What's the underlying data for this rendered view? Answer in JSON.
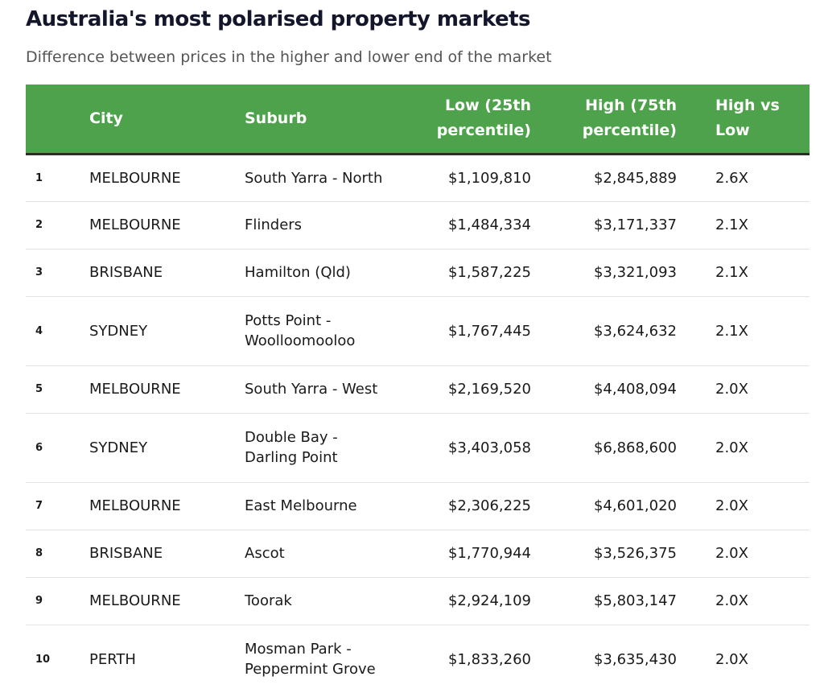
{
  "title": "Australia's most polarised property markets",
  "subtitle": "Difference between prices in the higher and lower end of the market",
  "header": {
    "rank": "",
    "city": "City",
    "suburb": "Suburb",
    "low_line1": "Low (25th",
    "low_line2": "percentile)",
    "high_line1": "High (75th",
    "high_line2": "percentile)",
    "ratio_line1": "High vs",
    "ratio_line2": "Low"
  },
  "rows": [
    {
      "rank": "1",
      "city": "MELBOURNE",
      "suburb_line1": "South Yarra - North",
      "suburb_line2": "",
      "low": "$1,109,810",
      "high": "$2,845,889",
      "ratio": "2.6X"
    },
    {
      "rank": "2",
      "city": "MELBOURNE",
      "suburb_line1": "Flinders",
      "suburb_line2": "",
      "low": "$1,484,334",
      "high": "$3,171,337",
      "ratio": "2.1X"
    },
    {
      "rank": "3",
      "city": "BRISBANE",
      "suburb_line1": "Hamilton (Qld)",
      "suburb_line2": "",
      "low": "$1,587,225",
      "high": "$3,321,093",
      "ratio": "2.1X"
    },
    {
      "rank": "4",
      "city": "SYDNEY",
      "suburb_line1": "Potts Point -",
      "suburb_line2": "Woolloomooloo",
      "low": "$1,767,445",
      "high": "$3,624,632",
      "ratio": "2.1X"
    },
    {
      "rank": "5",
      "city": "MELBOURNE",
      "suburb_line1": "South Yarra - West",
      "suburb_line2": "",
      "low": "$2,169,520",
      "high": "$4,408,094",
      "ratio": "2.0X"
    },
    {
      "rank": "6",
      "city": "SYDNEY",
      "suburb_line1": "Double Bay -",
      "suburb_line2": "Darling Point",
      "low": "$3,403,058",
      "high": "$6,868,600",
      "ratio": "2.0X"
    },
    {
      "rank": "7",
      "city": "MELBOURNE",
      "suburb_line1": "East Melbourne",
      "suburb_line2": "",
      "low": "$2,306,225",
      "high": "$4,601,020",
      "ratio": "2.0X"
    },
    {
      "rank": "8",
      "city": "BRISBANE",
      "suburb_line1": "Ascot",
      "suburb_line2": "",
      "low": "$1,770,944",
      "high": "$3,526,375",
      "ratio": "2.0X"
    },
    {
      "rank": "9",
      "city": "MELBOURNE",
      "suburb_line1": "Toorak",
      "suburb_line2": "",
      "low": "$2,924,109",
      "high": "$5,803,147",
      "ratio": "2.0X"
    },
    {
      "rank": "10",
      "city": "PERTH",
      "suburb_line1": "Mosman Park -",
      "suburb_line2": "Peppermint Grove",
      "low": "$1,833,260",
      "high": "$3,635,430",
      "ratio": "2.0X"
    }
  ],
  "colors": {
    "header_bg": "#4ea24b",
    "header_text": "#ffffff",
    "title": "#14162b"
  }
}
